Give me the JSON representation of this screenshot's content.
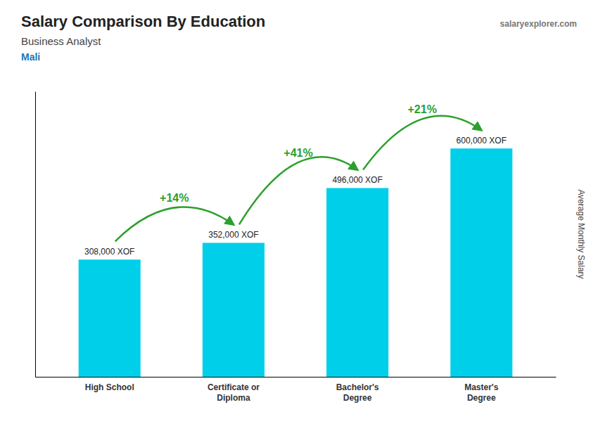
{
  "chart_data": {
    "type": "bar",
    "title": "Salary Comparison By Education",
    "subtitle": "Business Analyst",
    "country": "Mali",
    "watermark": "salaryexplorer.com",
    "ylabel": "Average Monthly Salary",
    "categories": [
      "High School",
      "Certificate or\nDiploma",
      "Bachelor's\nDegree",
      "Master's\nDegree"
    ],
    "values": [
      308000,
      352000,
      496000,
      600000
    ],
    "value_labels": [
      "308,000 XOF",
      "352,000 XOF",
      "496,000 XOF",
      "600,000 XOF"
    ],
    "data_labels": true,
    "annotations": [
      "+14%",
      "+41%",
      "+21%"
    ],
    "color": "#00cfea",
    "ylim": [
      0,
      750000
    ],
    "grid": false,
    "tick_labels": "x"
  }
}
